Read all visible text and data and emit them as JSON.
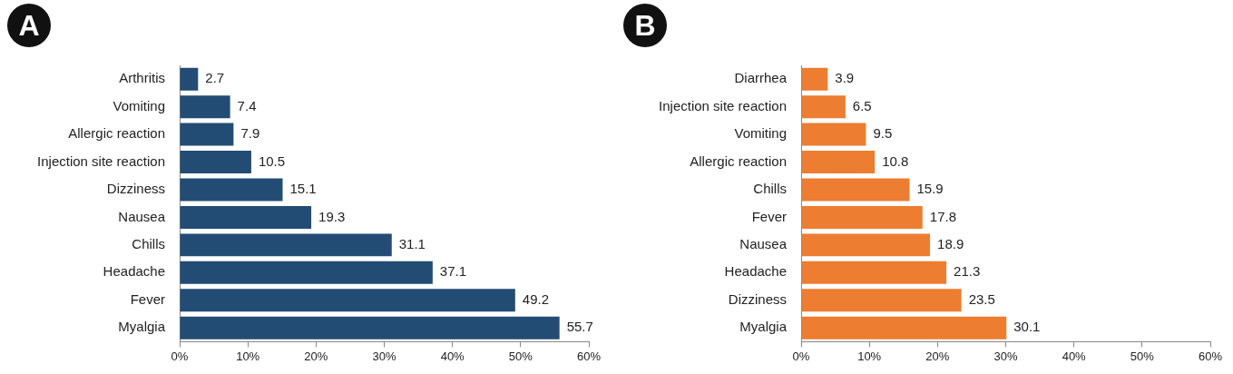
{
  "chart_data": [
    {
      "type": "bar",
      "title": "A",
      "orientation": "horizontal",
      "categories": [
        "Arthritis",
        "Vomiting",
        "Allergic reaction",
        "Injection site reaction",
        "Dizziness",
        "Nausea",
        "Chills",
        "Headache",
        "Fever",
        "Myalgia"
      ],
      "values": [
        2.7,
        7.4,
        7.9,
        10.5,
        15.1,
        19.3,
        31.1,
        37.1,
        49.2,
        55.7
      ],
      "color": "#224c74",
      "data_labels": true,
      "grid": false,
      "xlim": [
        0,
        60
      ],
      "xticks": [
        {
          "value": 0,
          "label": "0%"
        },
        {
          "value": 10,
          "label": "10%"
        },
        {
          "value": 20,
          "label": "20%"
        },
        {
          "value": 30,
          "label": "30%"
        },
        {
          "value": 40,
          "label": "40%"
        },
        {
          "value": 50,
          "label": "50%"
        },
        {
          "value": 60,
          "label": "60%"
        }
      ]
    },
    {
      "type": "bar",
      "title": "B",
      "orientation": "horizontal",
      "categories": [
        "Diarrhea",
        "Injection site reaction",
        "Vomiting",
        "Allergic reaction",
        "Chills",
        "Fever",
        "Nausea",
        "Headache",
        "Dizziness",
        "Myalgia"
      ],
      "values": [
        3.9,
        6.5,
        9.5,
        10.8,
        15.9,
        17.8,
        18.9,
        21.3,
        23.5,
        30.1
      ],
      "color": "#ed7d31",
      "data_labels": true,
      "grid": false,
      "xlim": [
        0,
        60
      ],
      "xticks": [
        {
          "value": 0,
          "label": "0%"
        },
        {
          "value": 10,
          "label": "10%"
        },
        {
          "value": 20,
          "label": "20%"
        },
        {
          "value": 30,
          "label": "30%"
        },
        {
          "value": 40,
          "label": "40%"
        },
        {
          "value": 50,
          "label": "50%"
        },
        {
          "value": 60,
          "label": "60%"
        }
      ]
    }
  ]
}
